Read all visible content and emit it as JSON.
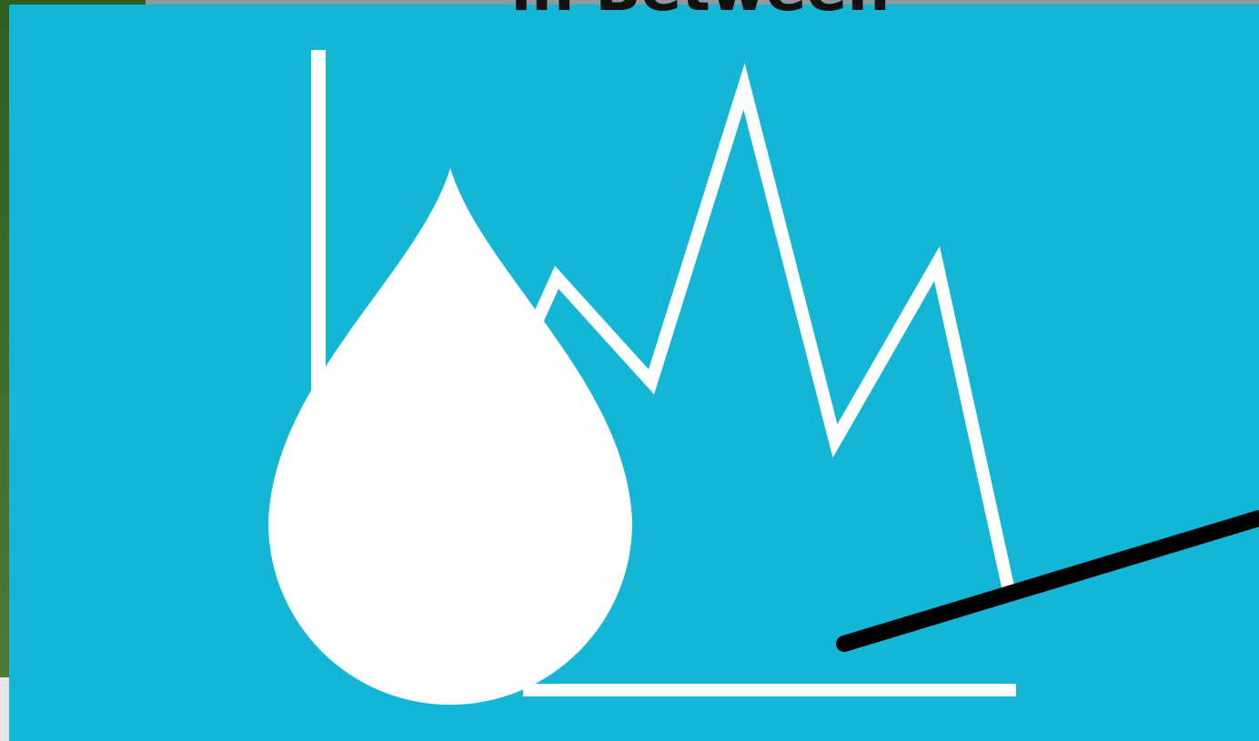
{
  "header": {
    "title": "in Between"
  }
}
